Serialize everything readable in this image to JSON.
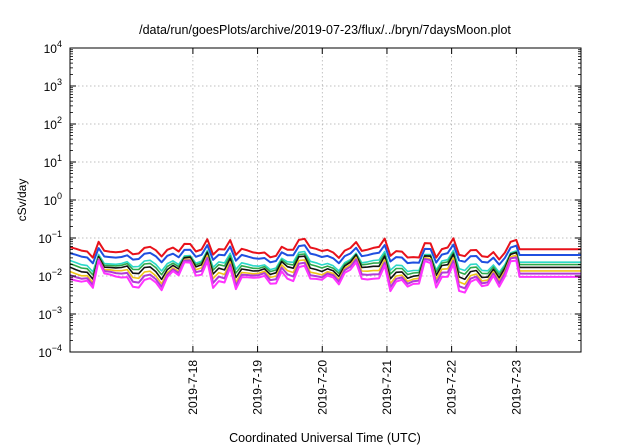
{
  "chart_data": {
    "type": "line",
    "title": "/data/run/goesPlots/archive/2019-07-23/flux/../bryn/7daysMoon.plot",
    "xlabel": "Coordinated Universal Time (UTC)",
    "ylabel": "cSv/day",
    "yscale": "log",
    "ylim_exp": [
      -4,
      4
    ],
    "y_tick_exponents": [
      -4,
      -3,
      -2,
      -1,
      0,
      1,
      2,
      3,
      4
    ],
    "xlim_days": [
      -0.9,
      7.0
    ],
    "x_tick_labels": [
      "2019-7-18",
      "2019-7-19",
      "2019-7-20",
      "2019-7-21",
      "2019-7-22",
      "2019-7-23"
    ],
    "x_tick_days": [
      1,
      2,
      3,
      4,
      5,
      6
    ],
    "grid": true,
    "series": [
      {
        "color": "#e8121b",
        "width": 2.0,
        "base": 0.048,
        "amp": 0.42,
        "phase": 0.3
      },
      {
        "color": "#1f4fe0",
        "width": 2.0,
        "base": 0.034,
        "amp": 0.4,
        "phase": 0.5
      },
      {
        "color": "#2bd8c8",
        "width": 1.6,
        "base": 0.022,
        "amp": 0.45,
        "phase": 0.9
      },
      {
        "color": "#2ea84a",
        "width": 1.6,
        "base": 0.019,
        "amp": 0.48,
        "phase": 1.3
      },
      {
        "color": "#111111",
        "width": 1.6,
        "base": 0.016,
        "amp": 0.55,
        "phase": 1.7
      },
      {
        "color": "#f0c419",
        "width": 1.6,
        "base": 0.013,
        "amp": 0.58,
        "phase": 2.1
      },
      {
        "color": "#b03bd6",
        "width": 2.0,
        "base": 0.011,
        "amp": 0.62,
        "phase": 2.5
      },
      {
        "color": "#ff33ff",
        "width": 2.0,
        "base": 0.009,
        "amp": 0.66,
        "phase": 2.9
      }
    ]
  }
}
